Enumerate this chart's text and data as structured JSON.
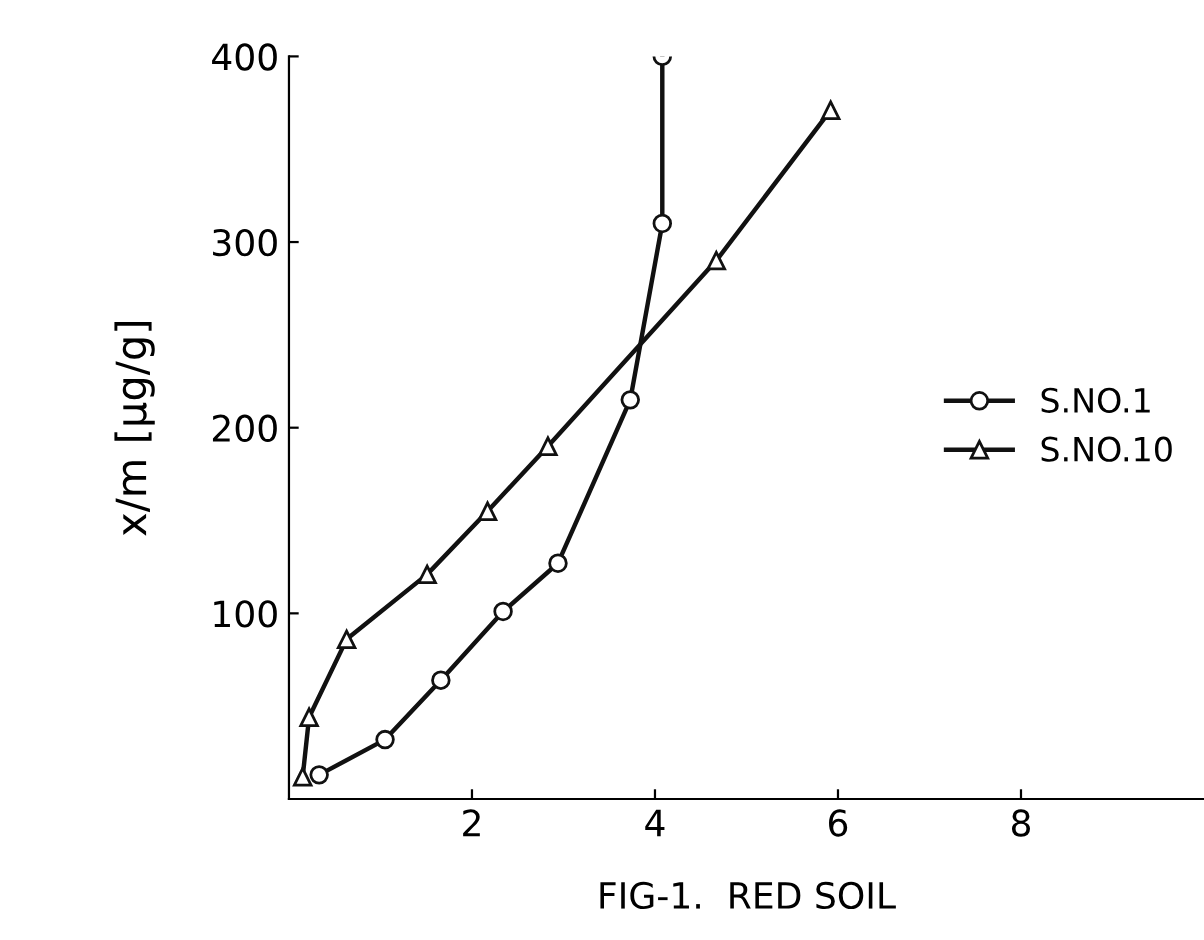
{
  "chart_data": {
    "type": "line",
    "title": "FIG-1.  RED SOIL",
    "ylabel": "x/m [µg/g]",
    "xlim": [
      0,
      10
    ],
    "ylim": [
      0,
      400
    ],
    "xticks": [
      2,
      4,
      6,
      8
    ],
    "yticks": [
      100,
      200,
      300,
      400
    ],
    "grid": false,
    "legend": "right",
    "line_style": "solid",
    "series": [
      {
        "name": "S.NO.1",
        "color": "#111111",
        "marker": "circle",
        "x": [
          0.33,
          1.05,
          1.66,
          2.34,
          2.94,
          3.73,
          4.08,
          4.08
        ],
        "values": [
          13,
          32,
          64,
          101,
          127,
          215,
          310,
          400
        ]
      },
      {
        "name": "S.NO.10",
        "color": "#111111",
        "marker": "triangle",
        "x": [
          0.15,
          0.22,
          0.63,
          1.51,
          2.17,
          2.83,
          4.67,
          5.92
        ],
        "values": [
          12,
          44,
          86,
          121,
          155,
          190,
          290,
          371
        ]
      }
    ]
  }
}
